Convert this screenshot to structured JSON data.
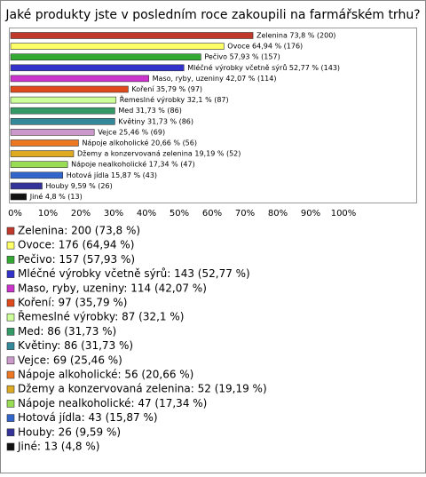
{
  "chart_data": {
    "type": "bar",
    "orientation": "horizontal",
    "title": "Jaké produkty jste v posledním roce zakoupili na farmářském trhu?",
    "categories": [
      "Zelenina",
      "Ovoce",
      "Pečivo",
      "Mléčné výrobky včetně sýrů",
      "Maso, ryby, uzeniny",
      "Koření",
      "Řemeslné výrobky",
      "Med",
      "Květiny",
      "Vejce",
      "Nápoje alkoholické",
      "Džemy a konzervovaná zelenina",
      "Nápoje nealkoholické",
      "Hotová jídla",
      "Houby",
      "Jiné"
    ],
    "values": [
      73.8,
      64.94,
      57.93,
      52.77,
      42.07,
      35.79,
      32.1,
      31.73,
      31.73,
      25.46,
      20.66,
      19.19,
      17.34,
      15.87,
      9.59,
      4.8
    ],
    "value_labels": [
      "Zelenina 73,8 % (200)",
      "Ovoce 64,94 % (176)",
      "Pečivo 57,93 % (157)",
      "Mléčné výrobky včetně sýrů 52,77 % (143)",
      "Maso, ryby, uzeniny 42,07 % (114)",
      "Koření 35,79 % (97)",
      "Řemeslné výrobky 32,1 % (87)",
      "Med 31,73 % (86)",
      "Květiny 31,73 % (86)",
      "Vejce 25,46 % (69)",
      "Nápoje alkoholické 20,66 % (56)",
      "Džemy a konzervovaná zelenina 19,19 % (52)",
      "Nápoje nealkoholické 17,34 % (47)",
      "Hotová jídla 15,87 % (43)",
      "Houby 9,59 % (26)",
      "Jiné 4,8 % (13)"
    ],
    "legend_labels": [
      "Zelenina: 200 (73,8 %)",
      "Ovoce: 176 (64,94 %)",
      "Pečivo: 157 (57,93 %)",
      "Mléčné výrobky včetně sýrů: 143 (52,77 %)",
      "Maso, ryby, uzeniny: 114 (42,07 %)",
      "Koření: 97 (35,79 %)",
      "Řemeslné výrobky: 87 (32,1 %)",
      "Med: 86 (31,73 %)",
      "Květiny: 86 (31,73 %)",
      "Vejce: 69 (25,46 %)",
      "Nápoje alkoholické: 56 (20,66 %)",
      "Džemy a konzervovaná zelenina: 52 (19,19 %)",
      "Nápoje nealkoholické: 47 (17,34 %)",
      "Hotová jídla: 43 (15,87 %)",
      "Houby: 26 (9,59 %)",
      "Jiné: 13 (4,8 %)"
    ],
    "colors": [
      "#c0392b",
      "#ffff66",
      "#33aa33",
      "#3333cc",
      "#cc33cc",
      "#e04a1a",
      "#ccff99",
      "#339966",
      "#338899",
      "#cc99cc",
      "#ee7722",
      "#ddaa22",
      "#99dd55",
      "#3366cc",
      "#333399",
      "#111111"
    ],
    "xlim": [
      0,
      100
    ],
    "xticks": [
      {
        "value": 0,
        "label": "0%"
      },
      {
        "value": 10,
        "label": "10%"
      },
      {
        "value": 20,
        "label": "20%"
      },
      {
        "value": 30,
        "label": "30%"
      },
      {
        "value": 40,
        "label": "40%"
      },
      {
        "value": 50,
        "label": "50%"
      },
      {
        "value": 60,
        "label": "60%"
      },
      {
        "value": 70,
        "label": "70%"
      },
      {
        "value": 80,
        "label": "80%"
      },
      {
        "value": 90,
        "label": "90%"
      },
      {
        "value": 100,
        "label": "100%"
      }
    ]
  }
}
